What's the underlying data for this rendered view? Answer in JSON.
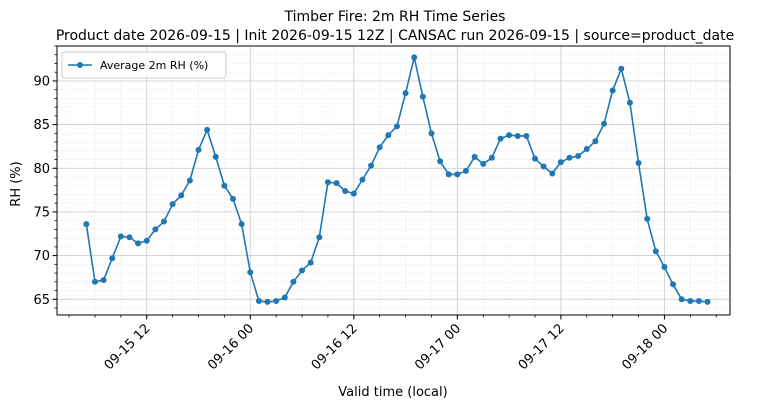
{
  "chart_data": {
    "type": "line",
    "title": "Timber Fire: 2m RH Time Series",
    "subtitle": "Product date 2026-09-15 | Init 2026-09-15 12Z | CANSAC run 2026-09-15 | source=product_date",
    "xlabel": "Valid time (local)",
    "ylabel": "RH (%)",
    "x_ticks": [
      "09-15 12",
      "09-16 00",
      "09-16 12",
      "09-17 00",
      "09-17 12",
      "09-18 00"
    ],
    "y_ticks": [
      "65",
      "70",
      "75",
      "80",
      "85",
      "90"
    ],
    "ylim": [
      63.2,
      94.0
    ],
    "grid": true,
    "legend_position": "upper-left",
    "series": [
      {
        "name": "Average 2m RH (%)",
        "color": "#1f77b4",
        "x": [
          "2026-09-15 05:00",
          "2026-09-15 06:00",
          "2026-09-15 07:00",
          "2026-09-15 08:00",
          "2026-09-15 09:00",
          "2026-09-15 10:00",
          "2026-09-15 11:00",
          "2026-09-15 12:00",
          "2026-09-15 13:00",
          "2026-09-15 14:00",
          "2026-09-15 15:00",
          "2026-09-15 16:00",
          "2026-09-15 17:00",
          "2026-09-15 18:00",
          "2026-09-15 19:00",
          "2026-09-15 20:00",
          "2026-09-15 21:00",
          "2026-09-15 22:00",
          "2026-09-15 23:00",
          "2026-09-16 00:00",
          "2026-09-16 01:00",
          "2026-09-16 02:00",
          "2026-09-16 03:00",
          "2026-09-16 04:00",
          "2026-09-16 05:00",
          "2026-09-16 06:00",
          "2026-09-16 07:00",
          "2026-09-16 08:00",
          "2026-09-16 09:00",
          "2026-09-16 10:00",
          "2026-09-16 11:00",
          "2026-09-16 12:00",
          "2026-09-16 13:00",
          "2026-09-16 14:00",
          "2026-09-16 15:00",
          "2026-09-16 16:00",
          "2026-09-16 17:00",
          "2026-09-16 18:00",
          "2026-09-16 19:00",
          "2026-09-16 20:00",
          "2026-09-16 21:00",
          "2026-09-16 22:00",
          "2026-09-16 23:00",
          "2026-09-17 00:00",
          "2026-09-17 01:00",
          "2026-09-17 02:00",
          "2026-09-17 03:00",
          "2026-09-17 04:00",
          "2026-09-17 05:00",
          "2026-09-17 06:00",
          "2026-09-17 07:00",
          "2026-09-17 08:00",
          "2026-09-17 09:00",
          "2026-09-17 10:00",
          "2026-09-17 11:00",
          "2026-09-17 12:00",
          "2026-09-17 13:00",
          "2026-09-17 14:00",
          "2026-09-17 15:00",
          "2026-09-17 16:00",
          "2026-09-17 17:00",
          "2026-09-17 18:00",
          "2026-09-17 19:00",
          "2026-09-17 20:00",
          "2026-09-17 21:00",
          "2026-09-17 22:00",
          "2026-09-17 23:00",
          "2026-09-18 00:00",
          "2026-09-18 01:00",
          "2026-09-18 02:00",
          "2026-09-18 03:00",
          "2026-09-18 04:00",
          "2026-09-18 05:00"
        ],
        "y": [
          73.6,
          67.0,
          67.2,
          69.7,
          72.2,
          72.1,
          71.4,
          71.7,
          73.0,
          73.9,
          75.9,
          76.9,
          78.6,
          82.1,
          84.4,
          81.3,
          78.0,
          76.5,
          73.6,
          68.1,
          64.8,
          64.7,
          64.8,
          65.2,
          67.0,
          68.3,
          69.2,
          72.1,
          78.4,
          78.3,
          77.4,
          77.1,
          78.7,
          80.3,
          82.4,
          83.8,
          84.8,
          88.6,
          92.7,
          88.2,
          84.0,
          80.8,
          79.3,
          79.3,
          79.7,
          81.3,
          80.5,
          81.2,
          83.4,
          83.8,
          83.7,
          83.7,
          81.1,
          80.2,
          79.4,
          80.7,
          81.2,
          81.4,
          82.2,
          83.1,
          85.1,
          88.9,
          91.4,
          87.5,
          80.6,
          74.2,
          70.5,
          68.7,
          66.7,
          65.0,
          64.8,
          64.8,
          64.7
        ]
      }
    ]
  }
}
